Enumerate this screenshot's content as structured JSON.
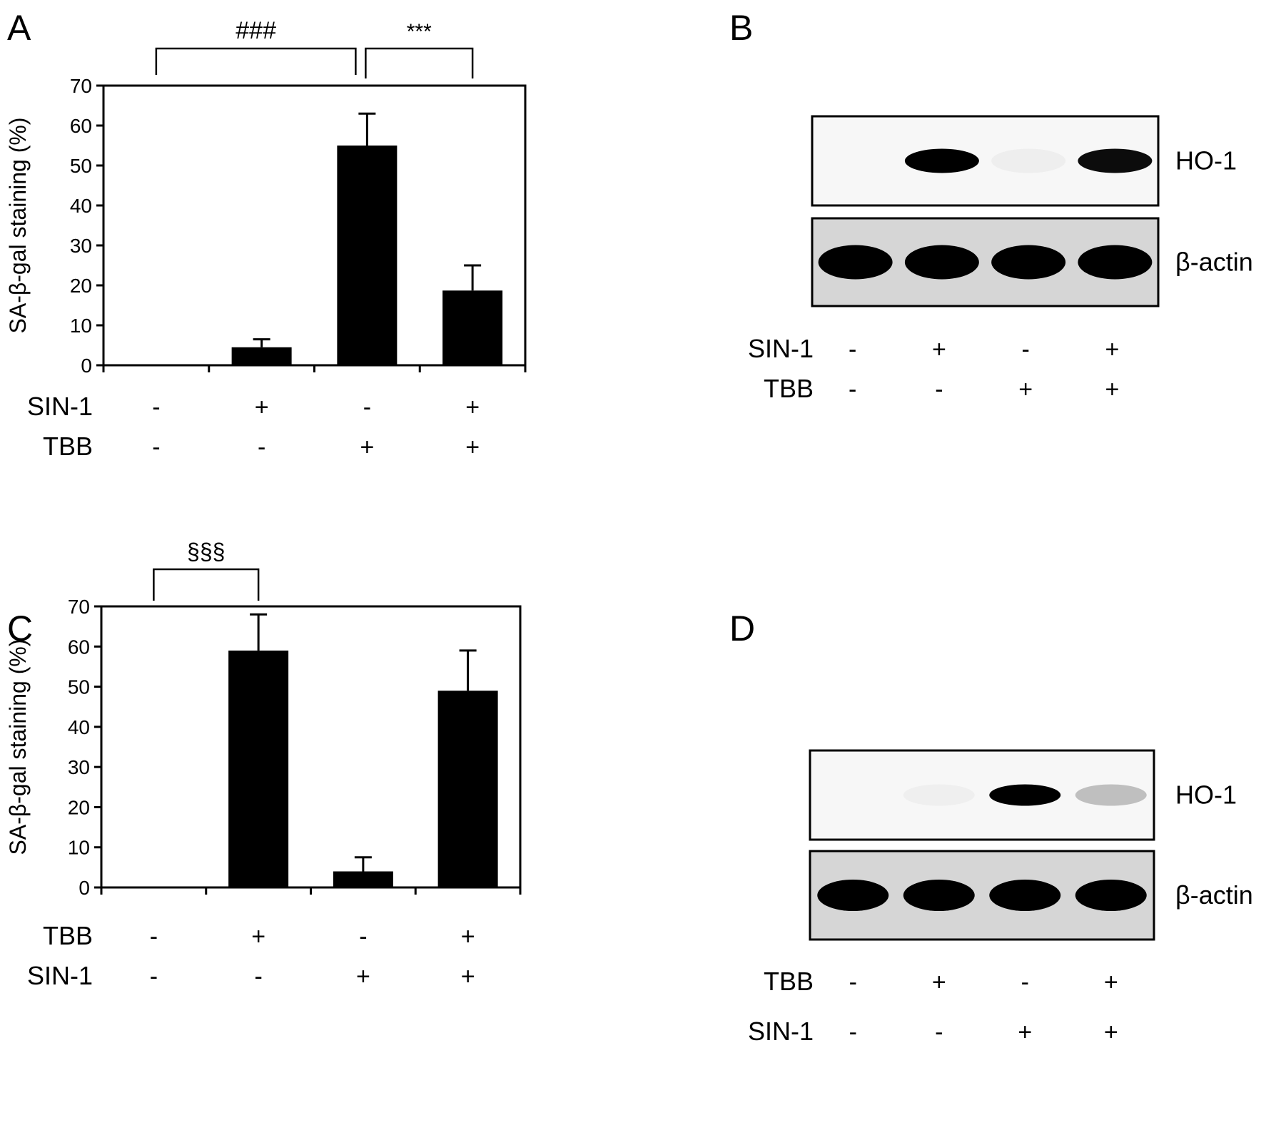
{
  "panels": {
    "A": {
      "letter": "A"
    },
    "B": {
      "letter": "B"
    },
    "C": {
      "letter": "C"
    },
    "D": {
      "letter": "D"
    }
  },
  "chart_data": [
    {
      "panel": "A",
      "type": "bar",
      "ylabel": "SA-β-gal staining (%)",
      "ylim": [
        0,
        70
      ],
      "yticks": [
        0,
        10,
        20,
        30,
        40,
        50,
        60,
        70
      ],
      "values": [
        0,
        4.5,
        55,
        18.7
      ],
      "errors": [
        0,
        2,
        8,
        6.3
      ],
      "bar_color": "#000000",
      "conditions": [
        {
          "label": "SIN-1",
          "marks": [
            "-",
            "+",
            "-",
            "+"
          ]
        },
        {
          "label": "TBB",
          "marks": [
            "-",
            "-",
            "+",
            "+"
          ]
        }
      ],
      "significance": [
        {
          "from": 0,
          "to": 2,
          "symbol": "###"
        },
        {
          "from": 2,
          "to": 3,
          "symbol": "***"
        }
      ]
    },
    {
      "panel": "C",
      "type": "bar",
      "ylabel": "SA-β-gal staining (%)",
      "ylim": [
        0,
        70
      ],
      "yticks": [
        0,
        10,
        20,
        30,
        40,
        50,
        60,
        70
      ],
      "values": [
        0,
        59,
        4,
        49
      ],
      "errors": [
        0,
        9,
        3.5,
        10
      ],
      "bar_color": "#000000",
      "conditions": [
        {
          "label": "TBB",
          "marks": [
            "-",
            "+",
            "-",
            "+"
          ]
        },
        {
          "label": "SIN-1",
          "marks": [
            "-",
            "-",
            "+",
            "+"
          ]
        }
      ],
      "significance": [
        {
          "from": 0,
          "to": 1,
          "symbol": "§§§"
        }
      ]
    }
  ],
  "blots": [
    {
      "panel": "B",
      "bands": [
        {
          "label": "HO-1",
          "intensities": [
            0,
            1,
            0.06,
            0.95
          ]
        },
        {
          "label": "β-actin",
          "intensities": [
            1,
            1,
            1,
            1
          ]
        }
      ],
      "conditions": [
        {
          "label": "SIN-1",
          "marks": [
            "-",
            "+",
            "-",
            "+"
          ]
        },
        {
          "label": "TBB",
          "marks": [
            "-",
            "-",
            "+",
            "+"
          ]
        }
      ]
    },
    {
      "panel": "D",
      "bands": [
        {
          "label": "HO-1",
          "intensities": [
            0,
            0.05,
            1,
            0.35
          ]
        },
        {
          "label": "β-actin",
          "intensities": [
            1,
            1,
            1,
            1
          ]
        }
      ],
      "conditions": [
        {
          "label": "TBB",
          "marks": [
            "-",
            "+",
            "-",
            "+"
          ]
        },
        {
          "label": "SIN-1",
          "marks": [
            "-",
            "-",
            "+",
            "+"
          ]
        }
      ]
    }
  ]
}
